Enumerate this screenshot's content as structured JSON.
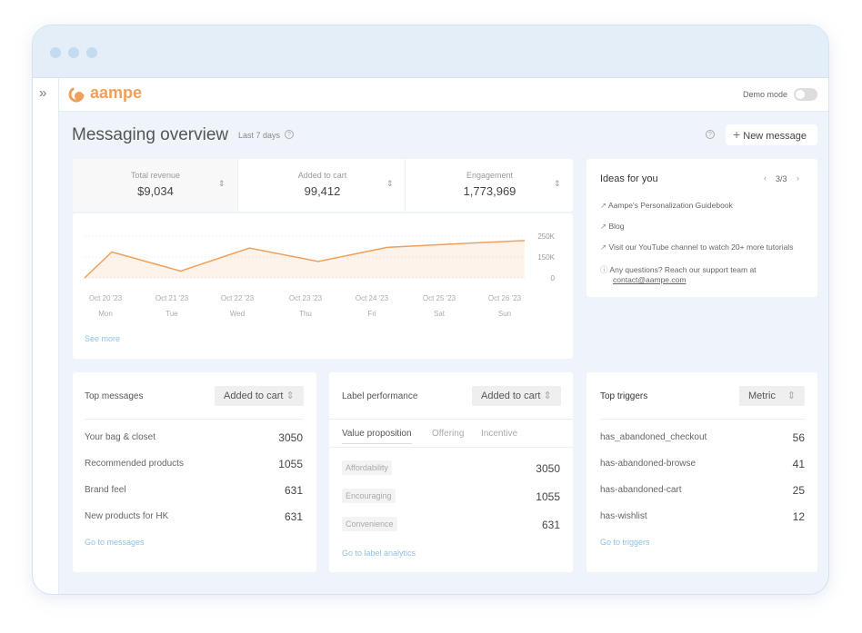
{
  "app": {
    "logo": "aampe",
    "demo_mode_label": "Demo mode",
    "demo_mode_on": false
  },
  "page": {
    "title": "Messaging overview",
    "period": "Last 7 days",
    "new_message": "New message"
  },
  "metrics": [
    {
      "label": "Total revenue",
      "value": "$9,034",
      "active": true
    },
    {
      "label": "Added to cart",
      "value": "99,412"
    },
    {
      "label": "Engagement",
      "value": "1,773,969"
    }
  ],
  "chart_data": {
    "type": "area",
    "categories": [
      "Oct 20 '23",
      "Oct 21 '23",
      "Oct 22 '23",
      "Oct 23 '23",
      "Oct 24 '23",
      "Oct 25 '23",
      "Oct 26 '23"
    ],
    "weekdays": [
      "Mon",
      "Tue",
      "Wed",
      "Thu",
      "Fri",
      "Sat",
      "Sun"
    ],
    "values": [
      174000,
      49000,
      193000,
      118000,
      196000,
      213000,
      229000
    ],
    "yticks": [
      "250K",
      "150K",
      "0"
    ],
    "ytick_values": [
      250000,
      150000,
      0
    ],
    "color": "#f0a05a"
  },
  "see_more": "See more",
  "ideas": {
    "title": "Ideas for you",
    "pager": "3/3",
    "items": [
      "Aampe's Personalization Guidebook",
      "Blog",
      "Visit our YouTube channel to watch 20+ more tutorials"
    ],
    "support_text": "Any questions? Reach our support team at",
    "support_email": "contact@aampe.com"
  },
  "top_messages": {
    "title": "Top messages",
    "metric": "Added to cart",
    "rows": [
      {
        "label": "Your bag & closet",
        "value": "3050"
      },
      {
        "label": "Recommended products",
        "value": "1055"
      },
      {
        "label": "Brand feel",
        "value": "631"
      },
      {
        "label": "New products for HK",
        "value": "631"
      }
    ],
    "link": "Go to messages"
  },
  "label_performance": {
    "title": "Label performance",
    "metric": "Added to cart",
    "tabs": [
      "Value proposition",
      "Offering",
      "Incentive"
    ],
    "rows": [
      {
        "label": "Affordability",
        "value": "3050"
      },
      {
        "label": "Encouraging",
        "value": "1055"
      },
      {
        "label": "Convenience",
        "value": "631"
      }
    ],
    "link": "Go to label analytics"
  },
  "top_triggers": {
    "title": "Top triggers",
    "metric": "Metric",
    "rows": [
      {
        "label": "has_abandoned_checkout",
        "value": "56"
      },
      {
        "label": "has-abandoned-browse",
        "value": "41"
      },
      {
        "label": "has-abandoned-cart",
        "value": "25"
      },
      {
        "label": "has-wishlist",
        "value": "12"
      }
    ],
    "link": "Go to triggers"
  }
}
